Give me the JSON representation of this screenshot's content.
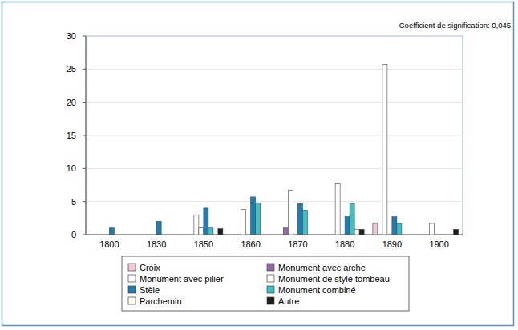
{
  "chart_data": {
    "type": "bar",
    "annotations": [
      "Coefficient de signification: 0,045"
    ],
    "categories": [
      "1800",
      "1830",
      "1850",
      "1860",
      "1870",
      "1880",
      "1890",
      "1900"
    ],
    "series": [
      {
        "name": "Croix",
        "color": "#f4c6d6",
        "values": [
          0,
          0,
          0,
          0,
          0,
          0,
          1.7,
          0
        ]
      },
      {
        "name": "Monument avec arche",
        "color": "#9467a8",
        "values": [
          0,
          0,
          0,
          0,
          1,
          0,
          0,
          0
        ]
      },
      {
        "name": "Monument avec pilier",
        "color": "#ffffff",
        "values": [
          0,
          0,
          3,
          3.8,
          6.7,
          7.7,
          25.7,
          1.7
        ]
      },
      {
        "name": "Monument de style tombeau",
        "color": "#ffffff",
        "values": [
          0,
          0,
          1,
          0,
          0,
          0,
          0,
          0
        ]
      },
      {
        "name": "Stèle",
        "color": "#1f7db5",
        "values": [
          1,
          2,
          4,
          5.7,
          4.7,
          2.7,
          2.7,
          0
        ]
      },
      {
        "name": "Monument combiné",
        "color": "#3cc2c0",
        "values": [
          0,
          0,
          1,
          4.8,
          3.7,
          4.7,
          1.7,
          0
        ]
      },
      {
        "name": "Parchemin",
        "color": "#fffff0",
        "values": [
          0,
          0,
          0,
          0,
          0,
          0.8,
          0,
          0
        ]
      },
      {
        "name": "Autre",
        "color": "#1e1e1e",
        "values": [
          0,
          0,
          0.9,
          0,
          0,
          0.8,
          0,
          0.8
        ]
      }
    ],
    "ylim": [
      0,
      30
    ],
    "yticks": [
      0,
      5,
      10,
      15,
      20,
      25,
      30
    ],
    "grid": true,
    "legend": "bottom"
  }
}
